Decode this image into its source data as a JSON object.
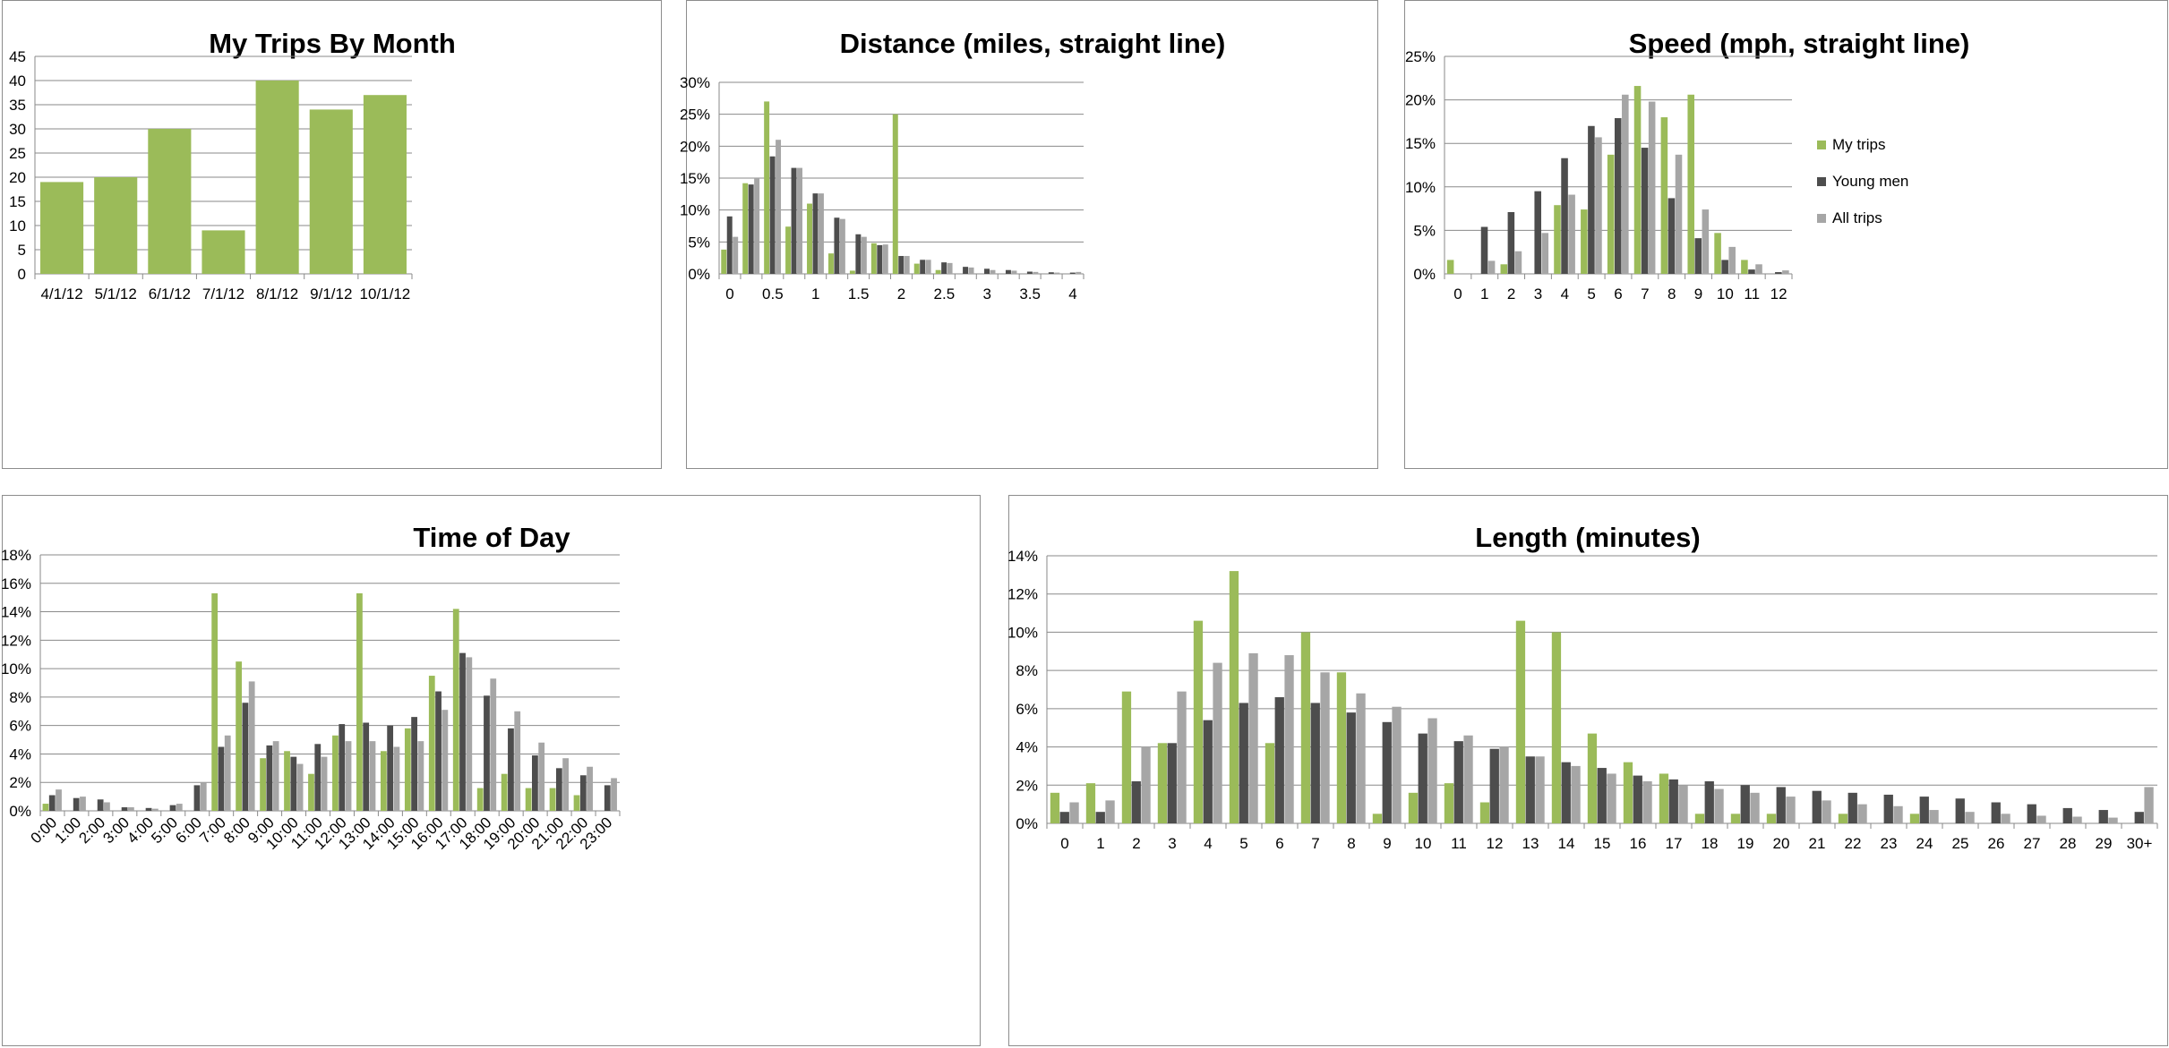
{
  "colors": {
    "my_trips": "#9bbb59",
    "young_men": "#4d4d4d",
    "all_trips": "#a6a6a6"
  },
  "chart_data": [
    {
      "id": "trips-by-month",
      "type": "bar",
      "title": "My Trips By Month",
      "categories": [
        "4/1/12",
        "5/1/12",
        "6/1/12",
        "7/1/12",
        "8/1/12",
        "9/1/12",
        "10/1/12"
      ],
      "series": [
        {
          "values": [
            19,
            20,
            30,
            9,
            40,
            34,
            37
          ]
        }
      ],
      "ylim": [
        0,
        45
      ],
      "yticks": [
        "0",
        "5",
        "10",
        "15",
        "20",
        "25",
        "30",
        "35",
        "40",
        "45"
      ],
      "grid": true
    },
    {
      "id": "distance",
      "type": "bar",
      "title": "Distance (miles, straight line)",
      "categories": [
        "0",
        "0.25",
        "0.5",
        "0.75",
        "1",
        "1.25",
        "1.5",
        "1.75",
        "2",
        "2.25",
        "2.5",
        "2.75",
        "3",
        "3.25",
        "3.5",
        "3.75",
        "4"
      ],
      "xtick_labels": [
        "0",
        "",
        "0.5",
        "",
        "1",
        "",
        "1.5",
        "",
        "2",
        "",
        "2.5",
        "",
        "3",
        "",
        "3.5",
        "",
        "4"
      ],
      "series": [
        {
          "name": "My trips",
          "values": [
            3.8,
            14.2,
            27.0,
            7.4,
            11.0,
            3.2,
            0.5,
            4.8,
            25.0,
            1.6,
            0.6,
            0,
            0,
            0,
            0,
            0,
            0
          ]
        },
        {
          "name": "Young men",
          "values": [
            9.0,
            14.0,
            18.4,
            16.6,
            12.6,
            8.8,
            6.2,
            4.5,
            2.8,
            2.2,
            1.8,
            1.1,
            0.8,
            0.6,
            0.35,
            0.25,
            0.2
          ]
        },
        {
          "name": "All trips",
          "values": [
            5.8,
            15.0,
            21.0,
            16.6,
            12.6,
            8.6,
            5.8,
            4.6,
            2.8,
            2.2,
            1.7,
            1.0,
            0.6,
            0.5,
            0.3,
            0.2,
            0.3
          ]
        }
      ],
      "ylim": [
        0,
        30
      ],
      "yticks": [
        "0%",
        "5%",
        "10%",
        "15%",
        "20%",
        "25%",
        "30%"
      ],
      "grid": true
    },
    {
      "id": "speed",
      "type": "bar",
      "title": "Speed (mph, straight line)",
      "categories": [
        "0",
        "1",
        "2",
        "3",
        "4",
        "5",
        "6",
        "7",
        "8",
        "9",
        "10",
        "11",
        "12"
      ],
      "series": [
        {
          "name": "My trips",
          "values": [
            1.6,
            0,
            1.1,
            0,
            7.9,
            7.4,
            13.7,
            21.6,
            18.0,
            20.6,
            4.7,
            1.6,
            0
          ]
        },
        {
          "name": "Young men",
          "values": [
            0,
            5.4,
            7.1,
            9.5,
            13.3,
            17.0,
            17.9,
            14.5,
            8.7,
            4.1,
            1.6,
            0.5,
            0.2
          ]
        },
        {
          "name": "All trips",
          "values": [
            0,
            1.5,
            2.6,
            4.7,
            9.1,
            15.7,
            20.6,
            19.8,
            13.7,
            7.4,
            3.1,
            1.1,
            0.4
          ]
        }
      ],
      "ylim": [
        0,
        25
      ],
      "yticks": [
        "0%",
        "5%",
        "10%",
        "15%",
        "20%",
        "25%"
      ],
      "legend": {
        "position": "right",
        "entries": [
          "My trips",
          "Young men",
          "All trips"
        ]
      },
      "grid": true
    },
    {
      "id": "time-of-day",
      "type": "bar",
      "title": "Time of Day",
      "categories": [
        "0:00",
        "1:00",
        "2:00",
        "3:00",
        "4:00",
        "5:00",
        "6:00",
        "7:00",
        "8:00",
        "9:00",
        "10:00",
        "11:00",
        "12:00",
        "13:00",
        "14:00",
        "15:00",
        "16:00",
        "17:00",
        "18:00",
        "19:00",
        "20:00",
        "21:00",
        "22:00",
        "23:00"
      ],
      "series": [
        {
          "name": "My trips",
          "values": [
            0.5,
            0,
            0,
            0,
            0,
            0,
            0,
            15.3,
            10.5,
            3.7,
            4.2,
            2.6,
            5.3,
            15.3,
            4.2,
            5.8,
            9.5,
            14.2,
            1.6,
            2.6,
            1.6,
            1.6,
            1.1,
            0
          ]
        },
        {
          "name": "Young men",
          "values": [
            1.1,
            0.9,
            0.8,
            0.25,
            0.2,
            0.4,
            1.8,
            4.5,
            7.6,
            4.6,
            3.8,
            4.7,
            6.1,
            6.2,
            6.0,
            6.6,
            8.4,
            11.1,
            8.1,
            5.8,
            3.9,
            3.0,
            2.5,
            1.8
          ]
        },
        {
          "name": "All trips",
          "values": [
            1.5,
            1.0,
            0.6,
            0.25,
            0.15,
            0.5,
            2.0,
            5.3,
            9.1,
            4.9,
            3.3,
            3.8,
            4.9,
            4.9,
            4.5,
            4.9,
            7.1,
            10.8,
            9.3,
            7.0,
            4.8,
            3.7,
            3.1,
            2.3
          ]
        }
      ],
      "ylim": [
        0,
        18
      ],
      "yticks": [
        "0%",
        "2%",
        "4%",
        "6%",
        "8%",
        "10%",
        "12%",
        "14%",
        "16%",
        "18%"
      ],
      "grid": true
    },
    {
      "id": "length",
      "type": "bar",
      "title": "Length (minutes)",
      "categories": [
        "0",
        "1",
        "2",
        "3",
        "4",
        "5",
        "6",
        "7",
        "8",
        "9",
        "10",
        "11",
        "12",
        "13",
        "14",
        "15",
        "16",
        "17",
        "18",
        "19",
        "20",
        "21",
        "22",
        "23",
        "24",
        "25",
        "26",
        "27",
        "28",
        "29",
        "30+"
      ],
      "series": [
        {
          "name": "My trips",
          "values": [
            1.6,
            2.1,
            6.9,
            4.2,
            10.6,
            13.2,
            4.2,
            10.0,
            7.9,
            0.5,
            1.6,
            2.1,
            1.1,
            10.6,
            10.0,
            4.7,
            3.2,
            2.6,
            0.5,
            0.5,
            0.5,
            0,
            0.5,
            0,
            0.5,
            0,
            0,
            0,
            0,
            0,
            0
          ]
        },
        {
          "name": "Young men",
          "values": [
            0.6,
            0.6,
            2.2,
            4.2,
            5.4,
            6.3,
            6.6,
            6.3,
            5.8,
            5.3,
            4.7,
            4.3,
            3.9,
            3.5,
            3.2,
            2.9,
            2.5,
            2.3,
            2.2,
            2.0,
            1.9,
            1.7,
            1.6,
            1.5,
            1.4,
            1.3,
            1.1,
            1.0,
            0.8,
            0.7,
            0.6
          ]
        },
        {
          "name": "All trips",
          "values": [
            1.1,
            1.2,
            4.0,
            6.9,
            8.4,
            8.9,
            8.8,
            7.9,
            6.8,
            6.1,
            5.5,
            4.6,
            4.0,
            3.5,
            3.0,
            2.6,
            2.2,
            2.0,
            1.8,
            1.6,
            1.4,
            1.2,
            1.0,
            0.9,
            0.7,
            0.6,
            0.5,
            0.4,
            0.35,
            0.3,
            1.9
          ]
        }
      ],
      "ylim": [
        0,
        14
      ],
      "yticks": [
        "0%",
        "2%",
        "4%",
        "6%",
        "8%",
        "10%",
        "12%",
        "14%"
      ],
      "grid": true
    }
  ]
}
